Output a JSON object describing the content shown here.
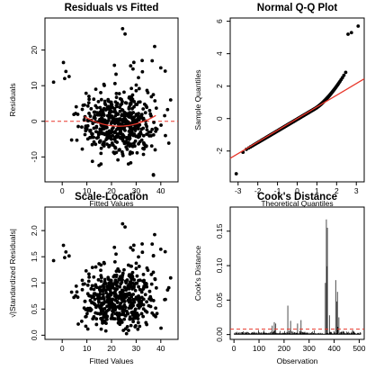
{
  "chart_data": [
    {
      "type": "scatter",
      "title": "Residuals vs Fitted",
      "xlabel": "Fitted Values",
      "ylabel": "Residuals",
      "xlim": [
        -7,
        47
      ],
      "ylim": [
        -17,
        29
      ],
      "xticks": [
        0,
        10,
        20,
        30,
        40
      ],
      "yticks": [
        -10,
        0,
        10,
        20
      ],
      "reference_line": {
        "y": 0,
        "style": "dashed",
        "color": "#e8372b"
      },
      "trend_line": {
        "color": "#e8372b",
        "description": "loess smoother"
      },
      "points_note": "approx. 506 observations; representative sample"
    },
    {
      "type": "scatter",
      "title": "Normal Q-Q Plot",
      "xlabel": "Theoretical Quantiles",
      "ylabel": "Sample Quantiles",
      "xlim": [
        -3.4,
        3.4
      ],
      "ylim": [
        -3.9,
        6.2
      ],
      "xticks": [
        -3,
        -2,
        -1,
        0,
        1,
        2,
        3
      ],
      "yticks": [
        -2,
        0,
        2,
        4,
        6
      ],
      "reference_line": {
        "intercept": 0,
        "slope": 0.72,
        "color": "#e8372b"
      }
    },
    {
      "type": "scatter",
      "title": "Scale-Location",
      "xlabel": "Fitted Values",
      "ylabel": "√|Standardized Residuals|",
      "xlim": [
        -7,
        47
      ],
      "ylim": [
        -0.08,
        2.45
      ],
      "xticks": [
        0,
        10,
        20,
        30,
        40
      ],
      "yticks": [
        0.0,
        0.5,
        1.0,
        1.5,
        2.0
      ]
    },
    {
      "type": "bar",
      "title": "Cook's Distance",
      "xlabel": "Observation",
      "ylabel": "Cook's Distance",
      "xlim": [
        -15,
        520
      ],
      "ylim": [
        -0.007,
        0.185
      ],
      "xticks": [
        0,
        100,
        200,
        300,
        400,
        500
      ],
      "yticks": [
        0.0,
        0.05,
        0.1,
        0.15
      ],
      "threshold": {
        "y": 0.0079,
        "style": "dashed",
        "color": "#e8372b"
      },
      "n_observations": 506,
      "spikes": [
        [
          153,
          0.013
        ],
        [
          161,
          0.018
        ],
        [
          167,
          0.016
        ],
        [
          215,
          0.042
        ],
        [
          226,
          0.02
        ],
        [
          254,
          0.016
        ],
        [
          268,
          0.021
        ],
        [
          365,
          0.075
        ],
        [
          369,
          0.167
        ],
        [
          372,
          0.099
        ],
        [
          373,
          0.155
        ],
        [
          381,
          0.028
        ],
        [
          406,
          0.079
        ],
        [
          411,
          0.048
        ],
        [
          413,
          0.062
        ],
        [
          415,
          0.011
        ],
        [
          419,
          0.025
        ]
      ]
    }
  ]
}
